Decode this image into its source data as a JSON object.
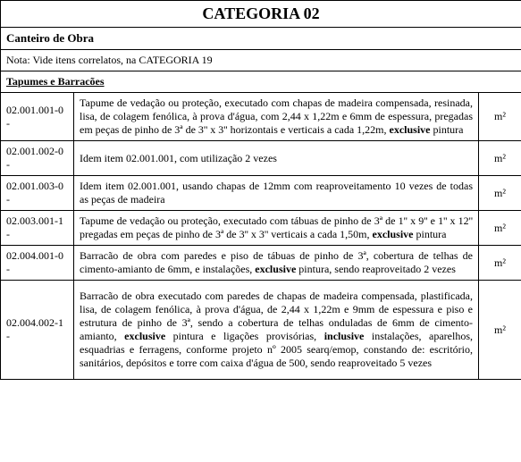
{
  "header": {
    "title": "CATEGORIA 02",
    "subtitle": "Canteiro de Obra"
  },
  "note": "Nota: Vide itens correlatos, na CATEGORIA 19",
  "section": "Tapumes e Barracões",
  "rows": [
    {
      "code": "02.001.001-0 -",
      "desc_html": "Tapume de vedação ou proteção, executado com chapas de madeira compensada, resinada, lisa, de colagem fenólica, à prova d'água, com 2,44 x 1,22m e 6mm de espessura, pregadas em peças de pinho de 3ª de 3'' x 3'' horizontais e verticais a cada 1,22m, <b>exclusive</b> pintura",
      "unit": "m²"
    },
    {
      "code": "02.001.002-0 -",
      "desc_html": "Idem item 02.001.001, com utilização 2 vezes",
      "unit": "m²"
    },
    {
      "code": "02.001.003-0 -",
      "desc_html": "Idem item 02.001.001, usando chapas de 12mm com reaproveitamento 10 vezes de todas as peças de madeira",
      "unit": "m²"
    },
    {
      "code": "02.003.001-1 -",
      "desc_html": "Tapume de vedação ou proteção, executado com tábuas de pinho de 3ª de 1'' x 9'' e 1'' x 12'' pregadas em peças de pinho de 3ª de 3'' x 3'' verticais a cada 1,50m, <b>exclusive</b> pintura",
      "unit": "m²"
    },
    {
      "code": "02.004.001-0 -",
      "desc_html": "Barracão de obra com paredes e piso de tábuas de pinho de 3ª, cobertura de telhas de cimento-amianto de 6mm, e instalações, <b>exclusive</b> pintura, sendo reaproveitado 2 vezes",
      "unit": "m²"
    },
    {
      "code": "02.004.002-1 -",
      "desc_html": "Barracão de obra executado com paredes de chapas de madeira compensada, plastificada, lisa, de colagem fenólica, à prova d'água, de 2,44 x 1,22m e 9mm de espessura e piso e estrutura de pinho de 3ª, sendo a cobertura de telhas onduladas de 6mm de cimento-amianto, <b>exclusive</b> pintura e ligações provisórias, <b>inclusive</b> instalações, aparelhos, esquadrias e ferragens, conforme projeto nº 2005 searq/emop, constando de:  escritório, sanitários, depósitos e torre com caixa d'água de 500, sendo reaproveitado 5 vezes",
      "unit": "m²"
    }
  ]
}
